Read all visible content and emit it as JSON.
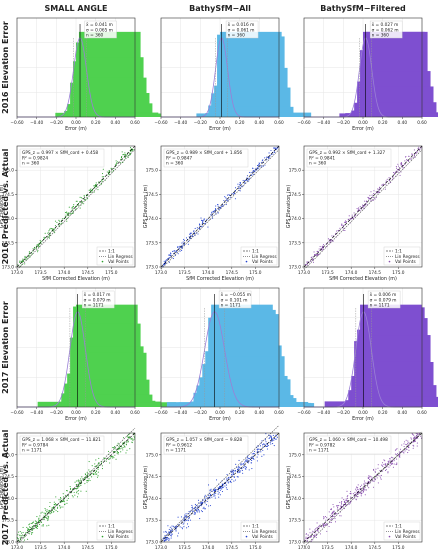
{
  "column_titles": [
    "SMALL ANGLE",
    "BathySfM−All",
    "BathySfM−Filtered"
  ],
  "row_titles": [
    "2016 Elevation Error",
    "2016 Predicted vs. Actual",
    "2017 Elevation Error",
    "2017 Predicted vs. Actual"
  ],
  "colors": {
    "small_angle": "#4fd14f",
    "all": "#5bb8e6",
    "filtered": "#7e4fd0",
    "scatter_small_angle": "#2ca02c",
    "scatter_all": "#1f3fd0",
    "scatter_filtered": "#8a4fb0",
    "normal_curve": "#9a7fd6",
    "one_to_one": "#000000",
    "regression": "#555555",
    "mean_line": "#000000"
  },
  "chart_data": [
    {
      "type": "bar",
      "panel": "2016-error-small-angle",
      "xlabel": "Error (m)",
      "xlim": [
        -0.6,
        0.6
      ],
      "xticks": [
        "−0.60",
        "−0.40",
        "−0.20",
        "0.00",
        "0.20",
        "0.40",
        "0.60"
      ],
      "stats": [
        "x̄ = 0.041 m",
        "σ = 0.065 m",
        "n = 360"
      ],
      "mean": 0.041,
      "sigma": 0.065
    },
    {
      "type": "bar",
      "panel": "2016-error-all",
      "xlabel": "Error (m)",
      "xlim": [
        -0.6,
        0.6
      ],
      "xticks": [
        "−0.60",
        "−0.40",
        "−0.20",
        "0.00",
        "0.20",
        "0.40",
        "0.60"
      ],
      "stats": [
        "x̄ = 0.016 m",
        "σ = 0.061 m",
        "n = 360"
      ],
      "mean": 0.016,
      "sigma": 0.061
    },
    {
      "type": "bar",
      "panel": "2016-error-filtered",
      "xlabel": "Error (m)",
      "xlim": [
        -0.6,
        0.6
      ],
      "xticks": [
        "−0.60",
        "−0.40",
        "−0.20",
        "0.00",
        "0.20",
        "0.40",
        "0.60"
      ],
      "stats": [
        "x̄ = 0.027 m",
        "σ = 0.062 m",
        "n = 360"
      ],
      "mean": 0.027,
      "sigma": 0.062
    },
    {
      "type": "scatter",
      "panel": "2016-pred-small-angle",
      "xlabel": "SfM Corrected Elevation (m)",
      "ylabel": "GPS Elevation (m)",
      "xlim": [
        173.0,
        175.5
      ],
      "ylim": [
        173.0,
        175.5
      ],
      "xticks": [
        "173.0",
        "173.5",
        "174.0",
        "174.5",
        "175.0"
      ],
      "yticks": [
        "173.0",
        "173.5",
        "174.0",
        "174.5",
        "175.0"
      ],
      "equation": "GPS_z = 0.997 × SfM_cord + 0.458",
      "r2": "R² = 0.9824",
      "n": "n = 360",
      "slope": 0.997,
      "intercept": 0.458,
      "legend": [
        "1:1",
        "Lin Regress",
        "Val Points"
      ],
      "legend_position": "bottom-right"
    },
    {
      "type": "scatter",
      "panel": "2016-pred-all",
      "xlabel": "SfM Corrected Elevation (m)",
      "ylabel": "GPS Elevation (m)",
      "xlim": [
        173.0,
        175.5
      ],
      "ylim": [
        173.0,
        175.5
      ],
      "xticks": [
        "173.0",
        "173.5",
        "174.0",
        "174.5",
        "175.0"
      ],
      "yticks": [
        "173.0",
        "173.5",
        "174.0",
        "174.5",
        "175.0"
      ],
      "equation": "GPS_z = 0.989 × SfM_cord + 1.856",
      "r2": "R² = 0.9847",
      "n": "n = 360",
      "slope": 0.989,
      "intercept": 1.856,
      "legend": [
        "1:1",
        "Lin Regress",
        "Val Points"
      ],
      "legend_position": "bottom-right"
    },
    {
      "type": "scatter",
      "panel": "2016-pred-filtered",
      "xlabel": "SfM Corrected Elevation (m)",
      "ylabel": "GPS Elevation (m)",
      "xlim": [
        173.0,
        175.5
      ],
      "ylim": [
        173.0,
        175.5
      ],
      "xticks": [
        "173.0",
        "173.5",
        "174.0",
        "174.5",
        "175.0"
      ],
      "yticks": [
        "173.0",
        "173.5",
        "174.0",
        "174.5",
        "175.0"
      ],
      "equation": "GPS_z = 0.992 × SfM_cord + 1.327",
      "r2": "R² = 0.9841",
      "n": "n = 360",
      "slope": 0.992,
      "intercept": 1.327,
      "legend": [
        "1:1",
        "Lin Regress",
        "Val Points"
      ],
      "legend_position": "bottom-right"
    },
    {
      "type": "bar",
      "panel": "2017-error-small-angle",
      "xlabel": "Error (m)",
      "xlim": [
        -0.6,
        0.6
      ],
      "xticks": [
        "−0.60",
        "−0.40",
        "−0.20",
        "0.00",
        "0.20",
        "0.40",
        "0.60"
      ],
      "stats": [
        "x̄ = 0.017 m",
        "σ = 0.079 m",
        "n = 1171"
      ],
      "mean": 0.017,
      "sigma": 0.079
    },
    {
      "type": "bar",
      "panel": "2017-error-all",
      "xlabel": "Error (m)",
      "xlim": [
        -0.6,
        0.6
      ],
      "xticks": [
        "−0.60",
        "−0.40",
        "−0.20",
        "0.00",
        "0.20",
        "0.40",
        "0.60"
      ],
      "stats": [
        "x̄ = −0.055 m",
        "σ = 0.101 m",
        "n = 1171"
      ],
      "mean": -0.055,
      "sigma": 0.101
    },
    {
      "type": "bar",
      "panel": "2017-error-filtered",
      "xlabel": "Error (m)",
      "xlim": [
        -0.6,
        0.6
      ],
      "xticks": [
        "−0.60",
        "−0.40",
        "−0.20",
        "0.00",
        "0.20",
        "0.40",
        "0.60"
      ],
      "stats": [
        "x̄ = 0.006 m",
        "σ = 0.079 m",
        "n = 1171"
      ],
      "mean": 0.006,
      "sigma": 0.079
    },
    {
      "type": "scatter",
      "panel": "2017-pred-small-angle",
      "xlabel": "SfM Corrected Elevation (m)",
      "ylabel": "GPS Elevation (m)",
      "xlim": [
        173.0,
        175.5
      ],
      "ylim": [
        173.0,
        175.5
      ],
      "xticks": [
        "173.0",
        "173.5",
        "174.0",
        "174.5",
        "175.0"
      ],
      "yticks": [
        "173.0",
        "173.5",
        "174.0",
        "174.5",
        "175.0"
      ],
      "equation": "GPS_z = 1.068 × SfM_cord − 11.821",
      "r2": "R² = 0.9784",
      "n": "n = 1171",
      "slope": 1.068,
      "intercept": -11.821,
      "legend": [
        "1:1",
        "Lin Regress",
        "Val Points"
      ],
      "legend_position": "bottom-right"
    },
    {
      "type": "scatter",
      "panel": "2017-pred-all",
      "xlabel": "SfM Corrected Elevation (m)",
      "ylabel": "GPS Elevation (m)",
      "xlim": [
        173.0,
        175.5
      ],
      "ylim": [
        173.0,
        175.5
      ],
      "xticks": [
        "173.0",
        "173.5",
        "174.0",
        "174.5",
        "175.0"
      ],
      "yticks": [
        "173.0",
        "173.5",
        "174.0",
        "174.5",
        "175.0"
      ],
      "equation": "GPS_z = 1.057 × SfM_cord − 9.828",
      "r2": "R² = 0.9612",
      "n": "n = 1171",
      "slope": 1.057,
      "intercept": -9.828,
      "legend": [
        "1:1",
        "Lin Regress",
        "Val Points"
      ],
      "legend_position": "bottom-right"
    },
    {
      "type": "scatter",
      "panel": "2017-pred-filtered",
      "xlabel": "SfM Corrected Elevation (m)",
      "ylabel": "GPS Elevation (m)",
      "xlim": [
        173.0,
        175.5
      ],
      "ylim": [
        173.0,
        175.5
      ],
      "xticks": [
        "173.0",
        "173.5",
        "174.0",
        "174.5",
        "175.0"
      ],
      "yticks": [
        "173.0",
        "173.5",
        "174.0",
        "174.5",
        "175.0"
      ],
      "equation": "GPS_z = 1.060 × SfM_cord − 10.498",
      "r2": "R² = 0.9782",
      "n": "n = 1171",
      "slope": 1.06,
      "intercept": -10.498,
      "legend": [
        "1:1",
        "Lin Regress",
        "Val Points"
      ],
      "legend_position": "bottom-right"
    }
  ]
}
